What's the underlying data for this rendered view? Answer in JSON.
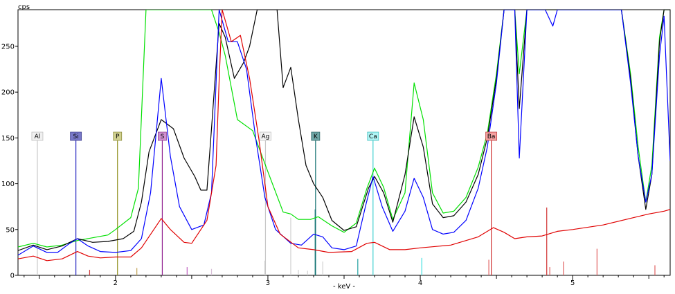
{
  "chart_data": {
    "type": "line",
    "title": "",
    "ylabel": "cps",
    "xlabel": "- keV -",
    "xlim": [
      1.36,
      5.64
    ],
    "ylim": [
      0,
      290
    ],
    "x_ticks": [
      {
        "v": 2,
        "label": "2"
      },
      {
        "v": 3,
        "label": "3"
      },
      {
        "v": 4,
        "label": "4"
      },
      {
        "v": 5,
        "label": "5"
      }
    ],
    "y_ticks": [
      {
        "v": 0,
        "label": "0"
      },
      {
        "v": 50,
        "label": "50"
      },
      {
        "v": 100,
        "label": "100"
      },
      {
        "v": 150,
        "label": "150"
      },
      {
        "v": 200,
        "label": "200"
      },
      {
        "v": 250,
        "label": "250"
      }
    ],
    "grid": false,
    "series": [
      {
        "color": "#00e000",
        "points": [
          [
            1.36,
            31
          ],
          [
            1.46,
            35
          ],
          [
            1.55,
            31
          ],
          [
            1.65,
            33
          ],
          [
            1.75,
            38
          ],
          [
            1.85,
            41
          ],
          [
            1.95,
            44
          ],
          [
            2.0,
            50
          ],
          [
            2.1,
            63
          ],
          [
            2.15,
            95
          ],
          [
            2.2,
            290
          ],
          [
            2.63,
            290
          ],
          [
            2.68,
            265
          ],
          [
            2.72,
            240
          ],
          [
            2.8,
            170
          ],
          [
            2.9,
            158
          ],
          [
            3.0,
            113
          ],
          [
            3.1,
            69
          ],
          [
            3.15,
            67
          ],
          [
            3.2,
            61
          ],
          [
            3.28,
            61
          ],
          [
            3.33,
            64
          ],
          [
            3.42,
            54
          ],
          [
            3.5,
            47
          ],
          [
            3.58,
            57
          ],
          [
            3.65,
            95
          ],
          [
            3.7,
            117
          ],
          [
            3.76,
            96
          ],
          [
            3.82,
            61
          ],
          [
            3.9,
            90
          ],
          [
            3.96,
            210
          ],
          [
            4.02,
            170
          ],
          [
            4.08,
            90
          ],
          [
            4.15,
            68
          ],
          [
            4.22,
            70
          ],
          [
            4.3,
            85
          ],
          [
            4.38,
            118
          ],
          [
            4.44,
            155
          ],
          [
            4.5,
            220
          ],
          [
            4.55,
            290
          ],
          [
            4.62,
            290
          ],
          [
            4.65,
            220
          ],
          [
            4.7,
            290
          ],
          [
            5.32,
            290
          ],
          [
            5.38,
            220
          ],
          [
            5.43,
            140
          ],
          [
            5.48,
            80
          ],
          [
            5.52,
            120
          ],
          [
            5.57,
            260
          ],
          [
            5.6,
            290
          ],
          [
            5.64,
            290
          ]
        ]
      },
      {
        "color": "#000000",
        "points": [
          [
            1.36,
            27
          ],
          [
            1.46,
            33
          ],
          [
            1.55,
            28
          ],
          [
            1.65,
            32
          ],
          [
            1.75,
            40
          ],
          [
            1.85,
            36
          ],
          [
            1.95,
            37
          ],
          [
            2.05,
            40
          ],
          [
            2.12,
            48
          ],
          [
            2.17,
            80
          ],
          [
            2.22,
            135
          ],
          [
            2.3,
            170
          ],
          [
            2.38,
            160
          ],
          [
            2.45,
            128
          ],
          [
            2.52,
            108
          ],
          [
            2.56,
            93
          ],
          [
            2.6,
            93
          ],
          [
            2.63,
            160
          ],
          [
            2.68,
            275
          ],
          [
            2.72,
            260
          ],
          [
            2.78,
            215
          ],
          [
            2.84,
            232
          ],
          [
            2.88,
            250
          ],
          [
            2.93,
            290
          ],
          [
            3.06,
            290
          ],
          [
            3.1,
            205
          ],
          [
            3.15,
            227
          ],
          [
            3.2,
            170
          ],
          [
            3.25,
            120
          ],
          [
            3.3,
            100
          ],
          [
            3.36,
            85
          ],
          [
            3.42,
            60
          ],
          [
            3.5,
            49
          ],
          [
            3.58,
            53
          ],
          [
            3.66,
            95
          ],
          [
            3.7,
            108
          ],
          [
            3.76,
            90
          ],
          [
            3.82,
            58
          ],
          [
            3.9,
            110
          ],
          [
            3.96,
            173
          ],
          [
            4.02,
            140
          ],
          [
            4.08,
            78
          ],
          [
            4.15,
            63
          ],
          [
            4.22,
            65
          ],
          [
            4.3,
            80
          ],
          [
            4.38,
            110
          ],
          [
            4.44,
            150
          ],
          [
            4.5,
            215
          ],
          [
            4.55,
            290
          ],
          [
            4.62,
            290
          ],
          [
            4.65,
            182
          ],
          [
            4.7,
            290
          ],
          [
            5.32,
            290
          ],
          [
            5.38,
            215
          ],
          [
            5.43,
            130
          ],
          [
            5.48,
            72
          ],
          [
            5.52,
            110
          ],
          [
            5.57,
            255
          ],
          [
            5.6,
            290
          ],
          [
            5.64,
            290
          ]
        ]
      },
      {
        "color": "#0000ff",
        "points": [
          [
            1.36,
            22
          ],
          [
            1.46,
            32
          ],
          [
            1.55,
            25
          ],
          [
            1.62,
            25
          ],
          [
            1.7,
            35
          ],
          [
            1.75,
            40
          ],
          [
            1.82,
            32
          ],
          [
            1.9,
            26
          ],
          [
            2.0,
            25
          ],
          [
            2.1,
            27
          ],
          [
            2.17,
            40
          ],
          [
            2.23,
            90
          ],
          [
            2.3,
            215
          ],
          [
            2.36,
            130
          ],
          [
            2.42,
            75
          ],
          [
            2.5,
            50
          ],
          [
            2.58,
            55
          ],
          [
            2.63,
            90
          ],
          [
            2.68,
            290
          ],
          [
            2.74,
            255
          ],
          [
            2.8,
            255
          ],
          [
            2.86,
            225
          ],
          [
            2.92,
            150
          ],
          [
            2.98,
            85
          ],
          [
            3.05,
            50
          ],
          [
            3.15,
            35
          ],
          [
            3.22,
            33
          ],
          [
            3.3,
            45
          ],
          [
            3.36,
            42
          ],
          [
            3.42,
            30
          ],
          [
            3.5,
            28
          ],
          [
            3.58,
            32
          ],
          [
            3.64,
            75
          ],
          [
            3.69,
            108
          ],
          [
            3.75,
            75
          ],
          [
            3.82,
            48
          ],
          [
            3.9,
            70
          ],
          [
            3.96,
            106
          ],
          [
            4.02,
            85
          ],
          [
            4.08,
            50
          ],
          [
            4.15,
            45
          ],
          [
            4.22,
            47
          ],
          [
            4.3,
            60
          ],
          [
            4.38,
            95
          ],
          [
            4.44,
            140
          ],
          [
            4.5,
            210
          ],
          [
            4.55,
            290
          ],
          [
            4.62,
            290
          ],
          [
            4.65,
            128
          ],
          [
            4.7,
            290
          ],
          [
            4.75,
            290
          ],
          [
            4.82,
            290
          ],
          [
            4.87,
            272
          ],
          [
            4.9,
            290
          ],
          [
            5.32,
            290
          ],
          [
            5.38,
            210
          ],
          [
            5.43,
            130
          ],
          [
            5.48,
            80
          ],
          [
            5.52,
            110
          ],
          [
            5.57,
            240
          ],
          [
            5.6,
            283
          ],
          [
            5.64,
            125
          ]
        ]
      },
      {
        "color": "#e00000",
        "points": [
          [
            1.36,
            18
          ],
          [
            1.46,
            21
          ],
          [
            1.55,
            16
          ],
          [
            1.65,
            18
          ],
          [
            1.75,
            26
          ],
          [
            1.82,
            21
          ],
          [
            1.9,
            19
          ],
          [
            2.0,
            20
          ],
          [
            2.1,
            20
          ],
          [
            2.17,
            30
          ],
          [
            2.3,
            62
          ],
          [
            2.36,
            50
          ],
          [
            2.45,
            36
          ],
          [
            2.5,
            35
          ],
          [
            2.6,
            60
          ],
          [
            2.66,
            120
          ],
          [
            2.68,
            212
          ],
          [
            2.7,
            290
          ],
          [
            2.76,
            255
          ],
          [
            2.82,
            262
          ],
          [
            2.88,
            215
          ],
          [
            2.94,
            150
          ],
          [
            3.0,
            75
          ],
          [
            3.08,
            45
          ],
          [
            3.2,
            30
          ],
          [
            3.3,
            28
          ],
          [
            3.4,
            25
          ],
          [
            3.55,
            26
          ],
          [
            3.65,
            35
          ],
          [
            3.7,
            36
          ],
          [
            3.8,
            28
          ],
          [
            3.9,
            28
          ],
          [
            4.0,
            30
          ],
          [
            4.2,
            33
          ],
          [
            4.38,
            42
          ],
          [
            4.48,
            52
          ],
          [
            4.55,
            47
          ],
          [
            4.62,
            40
          ],
          [
            4.7,
            42
          ],
          [
            4.8,
            43
          ],
          [
            4.9,
            48
          ],
          [
            5.0,
            50
          ],
          [
            5.2,
            55
          ],
          [
            5.4,
            63
          ],
          [
            5.5,
            67
          ],
          [
            5.6,
            70
          ],
          [
            5.64,
            72
          ]
        ]
      }
    ],
    "elements": [
      {
        "label": "Al",
        "x": 1.487,
        "fill": "#f0f0f0",
        "stroke": "#c0c0c0",
        "line": "#c8c8c8"
      },
      {
        "label": "Si",
        "x": 1.74,
        "fill": "#7878c8",
        "stroke": "#404090",
        "line": "#2020c0"
      },
      {
        "label": "P",
        "x": 2.013,
        "fill": "#d0d090",
        "stroke": "#909040",
        "line": "#909020"
      },
      {
        "label": "S",
        "x": 2.307,
        "fill": "#d090d0",
        "stroke": "#904090",
        "line": "#902090"
      },
      {
        "label": "Ag",
        "x": 2.984,
        "fill": "#f4f4f4",
        "stroke": "#c0c0c0",
        "line": "#c8c8c8"
      },
      {
        "label": "K",
        "x": 3.313,
        "fill": "#70a8a8",
        "stroke": "#306868",
        "line": "#107070"
      },
      {
        "label": "Ca",
        "x": 3.69,
        "fill": "#b0f4f4",
        "stroke": "#40c0c0",
        "line": "#40d0d0"
      },
      {
        "label": "Ba",
        "x": 4.466,
        "fill": "#f4a0a0",
        "stroke": "#c04040",
        "line": "#d03030"
      }
    ],
    "marker_lines": [
      {
        "x": 1.83,
        "h": 6,
        "color": "#d04040"
      },
      {
        "x": 2.14,
        "h": 8,
        "color": "#c0a050"
      },
      {
        "x": 2.47,
        "h": 9,
        "color": "#c060c0"
      },
      {
        "x": 2.63,
        "h": 7,
        "color": "#d8c0d8"
      },
      {
        "x": 2.98,
        "h": 16,
        "color": "#d0d0d0"
      },
      {
        "x": 3.15,
        "h": 63,
        "color": "#d0d0d0"
      },
      {
        "x": 3.2,
        "h": 6,
        "color": "#d0d0d0"
      },
      {
        "x": 3.26,
        "h": 5,
        "color": "#d0d0d0"
      },
      {
        "x": 3.36,
        "h": 15,
        "color": "#d0d0d0"
      },
      {
        "x": 3.31,
        "h": 72,
        "color": "#208080"
      },
      {
        "x": 3.59,
        "h": 18,
        "color": "#20a0a0"
      },
      {
        "x": 4.01,
        "h": 19,
        "color": "#40e0e0"
      },
      {
        "x": 4.45,
        "h": 17,
        "color": "#e06060"
      },
      {
        "x": 4.83,
        "h": 74,
        "color": "#d03030"
      },
      {
        "x": 4.85,
        "h": 9,
        "color": "#e06060"
      },
      {
        "x": 4.94,
        "h": 15,
        "color": "#e06060"
      },
      {
        "x": 5.16,
        "h": 29,
        "color": "#e06060"
      },
      {
        "x": 5.54,
        "h": 11,
        "color": "#e06060"
      }
    ]
  }
}
